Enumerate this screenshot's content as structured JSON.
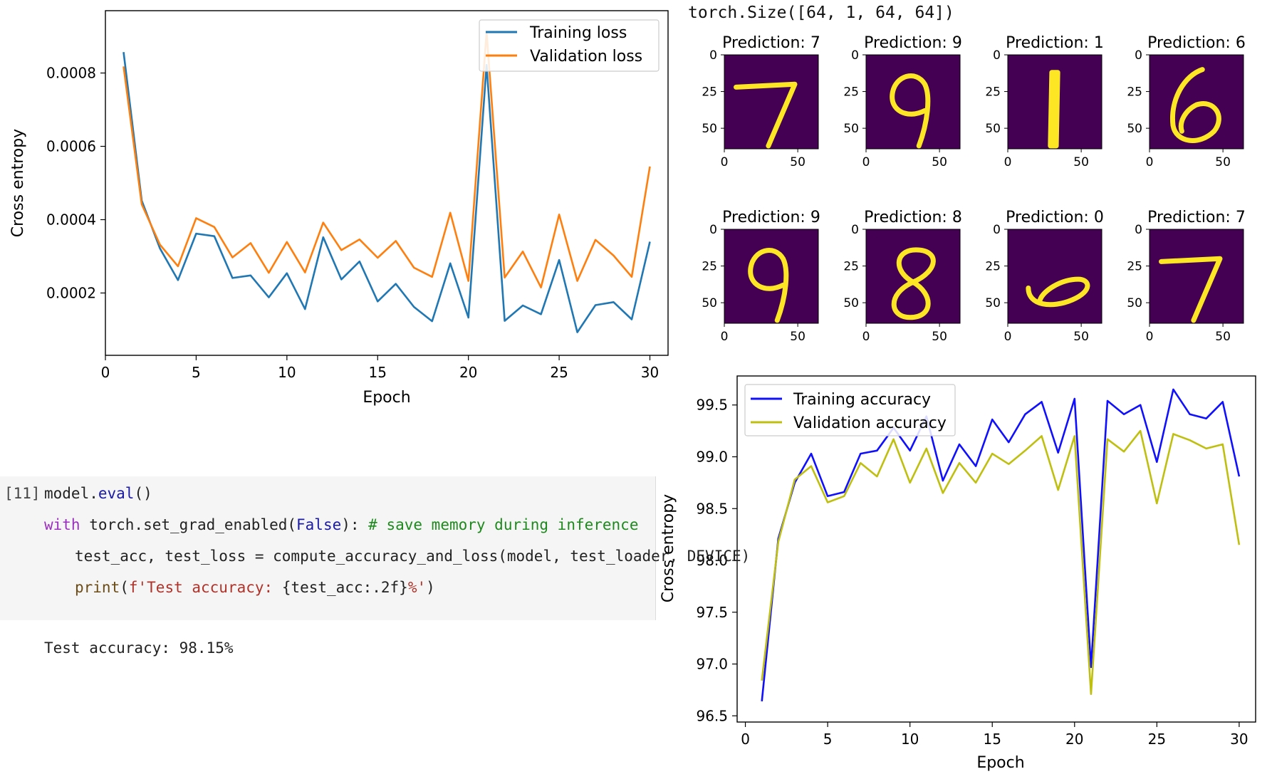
{
  "header": {
    "tensor_shape": "torch.Size([64, 1, 64, 64])"
  },
  "colors": {
    "train_loss": "#1f77b4",
    "val_loss": "#ff7f0e",
    "train_acc": "#1010ff",
    "val_acc": "#bfbf10",
    "digit_bg": "#440154",
    "digit_fg": "#fde725"
  },
  "predictions": [
    {
      "label": "Prediction: 7",
      "digit": "7",
      "icon": "digit-7-image"
    },
    {
      "label": "Prediction: 9",
      "digit": "9",
      "icon": "digit-9-image"
    },
    {
      "label": "Prediction: 1",
      "digit": "1",
      "icon": "digit-1-image"
    },
    {
      "label": "Prediction: 6",
      "digit": "6",
      "icon": "digit-6-image"
    },
    {
      "label": "Prediction: 9",
      "digit": "9",
      "icon": "digit-9-image"
    },
    {
      "label": "Prediction: 8",
      "digit": "8",
      "icon": "digit-8-image"
    },
    {
      "label": "Prediction: 0",
      "digit": "0",
      "icon": "digit-0-image"
    },
    {
      "label": "Prediction: 7",
      "digit": "7",
      "icon": "digit-7-image"
    }
  ],
  "thumb_axis": {
    "yticks": [
      "0",
      "25",
      "50"
    ],
    "xticks": [
      "0",
      "50"
    ]
  },
  "code_cell": {
    "prompt": "[11]",
    "line1": {
      "a": "model.",
      "b": "eval",
      "c": "()"
    },
    "line2": {
      "kw": "with",
      "a": " torch.set_grad_enabled(",
      "b": "False",
      "c": "): ",
      "comment": "# save memory during inference"
    },
    "line3": "test_acc, test_loss = compute_accuracy_and_loss(model, test_loader, DEVICE)",
    "line4": {
      "fn": "print",
      "a": "(",
      "b": "f'Test accuracy: ",
      "c": "{test_acc:.2f}",
      "d": "%'",
      "e": ")"
    }
  },
  "output": "Test accuracy: 98.15%",
  "chart_data": [
    {
      "type": "line",
      "xlabel": "Epoch",
      "ylabel": "Cross entropy",
      "xlim": [
        0,
        31
      ],
      "ylim": [
        3e-05,
        0.00097
      ],
      "xticks": [
        0,
        5,
        10,
        15,
        20,
        25,
        30
      ],
      "yticks": [
        0.0002,
        0.0004,
        0.0006,
        0.0008
      ],
      "yticklabels": [
        "0.0002",
        "0.0004",
        "0.0006",
        "0.0008"
      ],
      "legend": "top-right",
      "x": [
        1,
        2,
        3,
        4,
        5,
        6,
        7,
        8,
        9,
        10,
        11,
        12,
        13,
        14,
        15,
        16,
        17,
        18,
        19,
        20,
        21,
        22,
        23,
        24,
        25,
        26,
        27,
        28,
        29,
        30
      ],
      "series": [
        {
          "name": "Training loss",
          "values": [
            0.000857,
            0.000452,
            0.000322,
            0.000235,
            0.000362,
            0.000355,
            0.000241,
            0.000248,
            0.000188,
            0.000254,
            0.000156,
            0.000352,
            0.000237,
            0.000286,
            0.000177,
            0.000225,
            0.000162,
            0.000123,
            0.000281,
            0.000133,
            0.000822,
            0.000124,
            0.000166,
            0.000142,
            0.00029,
            9.3e-05,
            0.000167,
            0.000175,
            0.000128,
            0.00034
          ]
        },
        {
          "name": "Validation loss",
          "values": [
            0.000818,
            0.000442,
            0.000332,
            0.000273,
            0.000404,
            0.00038,
            0.000297,
            0.000336,
            0.000255,
            0.000339,
            0.000256,
            0.000392,
            0.000317,
            0.000346,
            0.000296,
            0.000342,
            0.000269,
            0.000244,
            0.000419,
            0.000233,
            0.000912,
            0.000242,
            0.000313,
            0.000215,
            0.000414,
            0.000233,
            0.000345,
            0.000302,
            0.000244,
            0.000545
          ]
        }
      ]
    },
    {
      "type": "line",
      "xlabel": "Epoch",
      "ylabel": "Cross entropy",
      "xlim": [
        -0.5,
        31
      ],
      "ylim": [
        96.44,
        99.78
      ],
      "xticks": [
        0,
        5,
        10,
        15,
        20,
        25,
        30
      ],
      "yticks": [
        96.5,
        97.0,
        97.5,
        98.0,
        98.5,
        99.0,
        99.5
      ],
      "yticklabels": [
        "96.5",
        "97.0",
        "97.5",
        "98.0",
        "98.5",
        "99.0",
        "99.5"
      ],
      "legend": "top-left",
      "x": [
        1,
        2,
        3,
        4,
        5,
        6,
        7,
        8,
        9,
        10,
        11,
        12,
        13,
        14,
        15,
        16,
        17,
        18,
        19,
        20,
        21,
        22,
        23,
        24,
        25,
        26,
        27,
        28,
        29,
        30
      ],
      "series": [
        {
          "name": "Training accuracy",
          "values": [
            96.64,
            98.21,
            98.75,
            99.03,
            98.62,
            98.66,
            99.03,
            99.06,
            99.28,
            99.06,
            99.39,
            98.77,
            99.12,
            98.91,
            99.36,
            99.14,
            99.41,
            99.53,
            99.04,
            99.56,
            96.97,
            99.54,
            99.41,
            99.5,
            98.95,
            99.65,
            99.41,
            99.37,
            99.53,
            98.81
          ]
        },
        {
          "name": "Validation accuracy",
          "values": [
            96.84,
            98.18,
            98.78,
            98.91,
            98.56,
            98.62,
            98.94,
            98.81,
            99.17,
            98.75,
            99.08,
            98.65,
            98.94,
            98.75,
            99.03,
            98.93,
            99.06,
            99.2,
            98.68,
            99.2,
            96.71,
            99.17,
            99.05,
            99.25,
            98.55,
            99.22,
            99.16,
            99.08,
            99.12,
            98.15
          ]
        }
      ]
    }
  ]
}
